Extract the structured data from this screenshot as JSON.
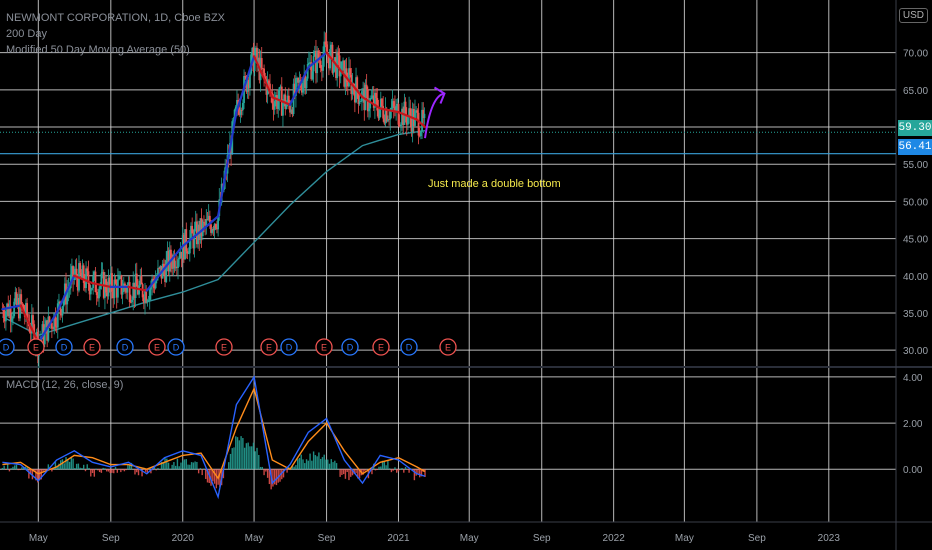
{
  "legend": {
    "symbol": "NEWMONT CORPORATION, 1D, Cboe BZX",
    "ma200": "200 Day",
    "ma50": "Modified 50 Day Moving Average (50)",
    "macd": "MACD (12, 26, close, 9)"
  },
  "currency": "USD",
  "annotation": "Just made a double bottom",
  "price_tags": {
    "last": "59.30",
    "level": "56.41"
  },
  "colors": {
    "background": "#000000",
    "grid": "#d8d8d8",
    "candle_up": "#26a69a",
    "candle_down": "#ef5350",
    "ma50_up": "#2138c9",
    "ma50_down": "#c4161c",
    "ma200": "#2f8e9a",
    "macd_line": "#2962ff",
    "signal_line": "#ff8c1a",
    "horizontal_level": "#3aa0d8",
    "last_price_tag": "#26a69a",
    "level_tag": "#1e88e5",
    "arrow": "#9c27ff",
    "annotation": "#f5e94c"
  },
  "chart_data": [
    {
      "type": "line",
      "panel": "price",
      "y_ticks": [
        "70.00",
        "65.00",
        "60.00",
        "55.00",
        "50.00",
        "45.00",
        "40.00",
        "35.00",
        "30.00"
      ],
      "x_ticks": [
        "May",
        "Sep",
        "2020",
        "May",
        "Sep",
        "2021",
        "May",
        "Sep",
        "2022",
        "May",
        "Sep",
        "2023"
      ],
      "ylim": [
        28,
        76
      ],
      "series": [
        {
          "name": "200 Day",
          "x": [
            "2019-03-01",
            "2019-05-01",
            "2019-07-01",
            "2019-09-01",
            "2019-11-01",
            "2020-01-01",
            "2020-03-01",
            "2020-05-01",
            "2020-07-01",
            "2020-09-01",
            "2020-11-01",
            "2021-01-01",
            "2021-02-15"
          ],
          "values": [
            34.5,
            32.0,
            33.5,
            35.0,
            36.5,
            37.8,
            39.5,
            44.5,
            49.5,
            54.0,
            57.5,
            59.0,
            59.5
          ]
        },
        {
          "name": "Modified 50 Day Moving Average (50)",
          "x": [
            "2019-03-01",
            "2019-04-01",
            "2019-05-01",
            "2019-06-01",
            "2019-07-01",
            "2019-08-01",
            "2019-09-01",
            "2019-10-01",
            "2019-11-01",
            "2019-12-01",
            "2020-01-01",
            "2020-02-01",
            "2020-03-01",
            "2020-04-01",
            "2020-05-01",
            "2020-06-01",
            "2020-07-01",
            "2020-08-01",
            "2020-09-01",
            "2020-10-01",
            "2020-11-01",
            "2020-12-01",
            "2021-01-01",
            "2021-02-01",
            "2021-02-15"
          ],
          "values": [
            35.5,
            36.0,
            31.0,
            35.0,
            40.0,
            39.0,
            38.5,
            38.5,
            38.0,
            41.0,
            44.0,
            46.0,
            48.0,
            62.0,
            69.5,
            64.0,
            63.0,
            68.0,
            70.0,
            67.0,
            64.0,
            62.5,
            62.0,
            61.0,
            60.0
          ]
        }
      ],
      "horizontal_lines": [
        59.3,
        56.41
      ],
      "events": [
        "D",
        "E",
        "D",
        "E",
        "D",
        "E",
        "D",
        "E",
        "E",
        "D",
        "E",
        "D",
        "E",
        "D",
        "E"
      ]
    },
    {
      "type": "line",
      "panel": "macd",
      "y_ticks": [
        "4.00",
        "2.00",
        "0.00"
      ],
      "ylim": [
        -2.2,
        4.3
      ],
      "series": [
        {
          "name": "MACD",
          "x": [
            "2019-03-01",
            "2019-04-01",
            "2019-05-01",
            "2019-06-01",
            "2019-07-01",
            "2019-08-01",
            "2019-09-01",
            "2019-10-01",
            "2019-11-01",
            "2019-12-01",
            "2020-01-01",
            "2020-02-01",
            "2020-03-01",
            "2020-04-01",
            "2020-05-01",
            "2020-06-01",
            "2020-07-01",
            "2020-08-01",
            "2020-09-01",
            "2020-10-01",
            "2020-11-01",
            "2020-12-01",
            "2021-01-01",
            "2021-02-01",
            "2021-02-15"
          ],
          "values": [
            0.3,
            0.2,
            -0.5,
            0.4,
            0.8,
            0.3,
            0.1,
            0.3,
            -0.2,
            0.5,
            0.8,
            0.6,
            -1.2,
            2.8,
            4.0,
            -0.6,
            0.2,
            1.6,
            2.2,
            0.4,
            -0.6,
            0.6,
            0.4,
            -0.2,
            -0.3
          ]
        },
        {
          "name": "Signal",
          "x": [
            "2019-03-01",
            "2019-04-01",
            "2019-05-01",
            "2019-06-01",
            "2019-07-01",
            "2019-08-01",
            "2019-09-01",
            "2019-10-01",
            "2019-11-01",
            "2019-12-01",
            "2020-01-01",
            "2020-02-01",
            "2020-03-01",
            "2020-04-01",
            "2020-05-01",
            "2020-06-01",
            "2020-07-01",
            "2020-08-01",
            "2020-09-01",
            "2020-10-01",
            "2020-11-01",
            "2020-12-01",
            "2021-01-01",
            "2021-02-01",
            "2021-02-15"
          ],
          "values": [
            0.2,
            0.3,
            -0.2,
            0.1,
            0.6,
            0.5,
            0.2,
            0.2,
            0.0,
            0.3,
            0.6,
            0.7,
            -0.4,
            1.8,
            3.5,
            0.4,
            0.0,
            1.2,
            2.0,
            0.8,
            -0.2,
            0.3,
            0.5,
            0.1,
            -0.1
          ]
        }
      ]
    }
  ]
}
